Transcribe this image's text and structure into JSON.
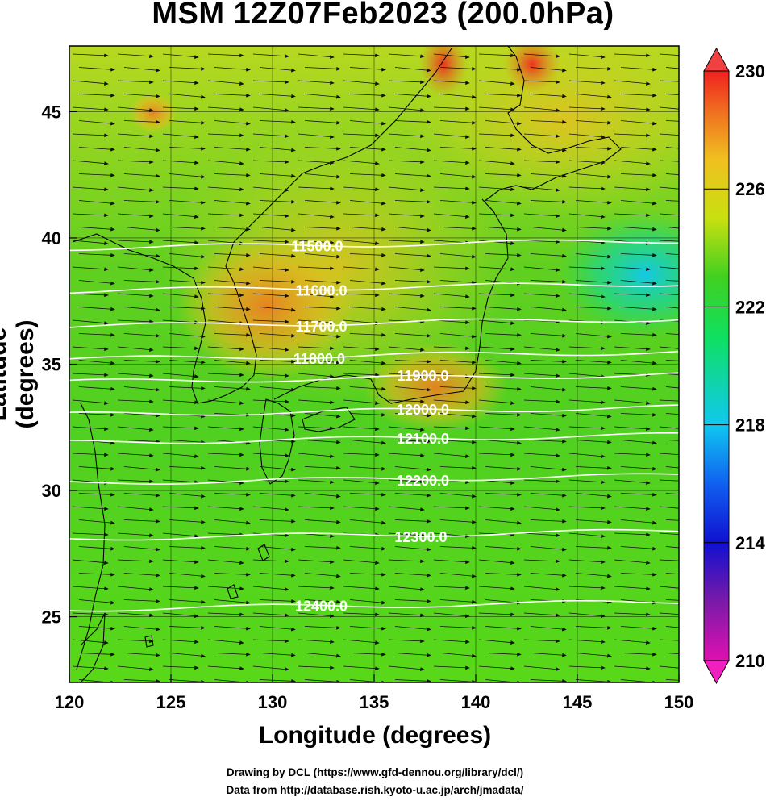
{
  "title": "MSM 12Z07Feb2023 (200.0hPa)",
  "x_axis": {
    "label": "Longitude (degrees)",
    "ticks": [
      {
        "value": 120,
        "label": "120"
      },
      {
        "value": 125,
        "label": "125"
      },
      {
        "value": 130,
        "label": "130"
      },
      {
        "value": 135,
        "label": "135"
      },
      {
        "value": 140,
        "label": "140"
      },
      {
        "value": 145,
        "label": "145"
      },
      {
        "value": 150,
        "label": "150"
      }
    ],
    "range": [
      120,
      150
    ]
  },
  "y_axis": {
    "label": "Latitude  (degrees)",
    "ticks": [
      {
        "value": 25,
        "label": "25"
      },
      {
        "value": 30,
        "label": "30"
      },
      {
        "value": 35,
        "label": "35"
      },
      {
        "value": 40,
        "label": "40"
      },
      {
        "value": 45,
        "label": "45"
      }
    ],
    "range": [
      22.4,
      47.6
    ]
  },
  "colorbar": {
    "ticks": [
      {
        "value": 210,
        "label": "210"
      },
      {
        "value": 214,
        "label": "214"
      },
      {
        "value": 218,
        "label": "218"
      },
      {
        "value": 222,
        "label": "222"
      },
      {
        "value": 226,
        "label": "226"
      },
      {
        "value": 230,
        "label": "230"
      }
    ],
    "range": [
      210,
      230
    ],
    "colors": [
      "#e010b0",
      "#7a1aa8",
      "#1010d0",
      "#1060f0",
      "#10c8f0",
      "#10e060",
      "#40d020",
      "#c8e010",
      "#f0c020",
      "#f07020",
      "#f02020"
    ]
  },
  "contours": [
    {
      "label": "11500.0",
      "lat": 39.6,
      "label_lon": 132.2
    },
    {
      "label": "11600.0",
      "lat": 37.9,
      "label_lon": 132.4
    },
    {
      "label": "11700.0",
      "lat": 36.5,
      "label_lon": 132.4
    },
    {
      "label": "11800.0",
      "lat": 35.2,
      "label_lon": 132.3
    },
    {
      "label": "11900.0",
      "lat": 34.3,
      "label_lon": 137.4
    },
    {
      "label": "12000.0",
      "lat": 33.0,
      "label_lon": 137.4
    },
    {
      "label": "12100.0",
      "lat": 31.9,
      "label_lon": 137.4
    },
    {
      "label": "12200.0",
      "lat": 30.3,
      "label_lon": 137.4
    },
    {
      "label": "12300.0",
      "lat": 28.1,
      "label_lon": 137.3
    },
    {
      "label": "12400.0",
      "lat": 25.3,
      "label_lon": 132.4
    }
  ],
  "credits": [
    "Drawing by DCL (https://www.gfd-dennou.org/library/dcl/)",
    "Data from http://database.rish.kyoto-u.ac.jp/arch/jmadata/"
  ]
}
